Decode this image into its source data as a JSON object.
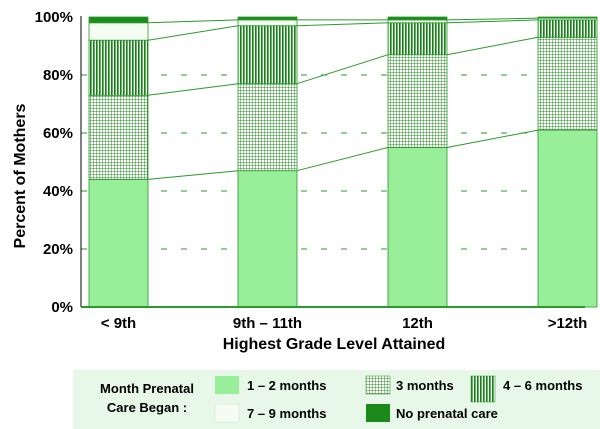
{
  "chart_data": {
    "type": "bar",
    "stacked": true,
    "ylabel": "Percent of Mothers",
    "xlabel": "Highest Grade Level Attained",
    "ylim": [
      0,
      100
    ],
    "yticks": [
      "0%",
      "20%",
      "40%",
      "60%",
      "80%",
      "100%"
    ],
    "categories": [
      "< 9th",
      "9th – 11th",
      "12th",
      ">12th"
    ],
    "series": [
      {
        "name": "1 – 2 months",
        "values": [
          44,
          47,
          55,
          61
        ],
        "color": "#99ee99",
        "pattern": "solid"
      },
      {
        "name": "3 months",
        "values": [
          29,
          30,
          32,
          32
        ],
        "color": "#4caf50",
        "pattern": "grid"
      },
      {
        "name": "4 – 6 months",
        "values": [
          19,
          20,
          11,
          6
        ],
        "color": "#2e8b2e",
        "pattern": "vertical-lines"
      },
      {
        "name": "7 – 9 months",
        "values": [
          6,
          2,
          1,
          0.6
        ],
        "color": "#e8f8e8",
        "pattern": "solid"
      },
      {
        "name": "No prenatal care",
        "values": [
          2,
          1,
          1,
          0.4
        ],
        "color": "#1a8a1a",
        "pattern": "solid"
      }
    ],
    "legend": {
      "title_line1": "Month Prenatal",
      "title_line2": "Care Began :",
      "position": "bottom",
      "background": "#e8f8e8"
    },
    "grid": "dashed-horizontal"
  }
}
